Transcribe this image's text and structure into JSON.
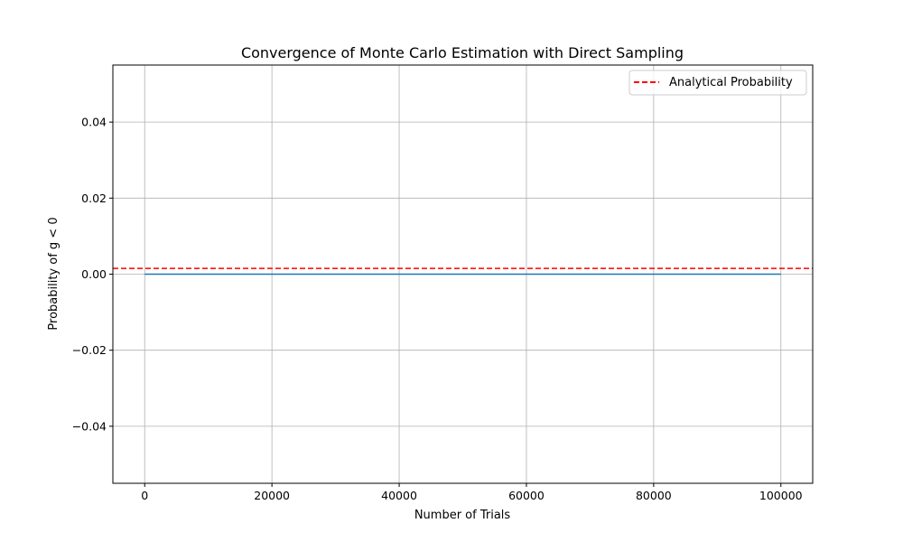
{
  "chart_data": {
    "type": "line",
    "title": "Convergence of Monte Carlo Estimation with Direct Sampling",
    "xlabel": "Number of Trials",
    "ylabel": "Probability of g < 0",
    "xlim": [
      -5000,
      105000
    ],
    "ylim": [
      -0.055,
      0.055
    ],
    "x_ticks": [
      0,
      20000,
      40000,
      60000,
      80000,
      100000
    ],
    "x_tick_labels": [
      "0",
      "20000",
      "40000",
      "60000",
      "80000",
      "100000"
    ],
    "y_ticks": [
      -0.04,
      -0.02,
      0.0,
      0.02,
      0.04
    ],
    "y_tick_labels": [
      "−0.04",
      "−0.02",
      "0.00",
      "0.02",
      "0.04"
    ],
    "grid": true,
    "legend_position": "top-right",
    "series": [
      {
        "x": [
          1,
          100000
        ],
        "y": [
          0.0,
          0.0
        ],
        "color": "#1f77b4",
        "style": "solid"
      }
    ],
    "reference_lines": [
      {
        "name": "Analytical Probability",
        "y": 0.0015,
        "color": "#ff0000",
        "style": "dashed"
      }
    ]
  }
}
